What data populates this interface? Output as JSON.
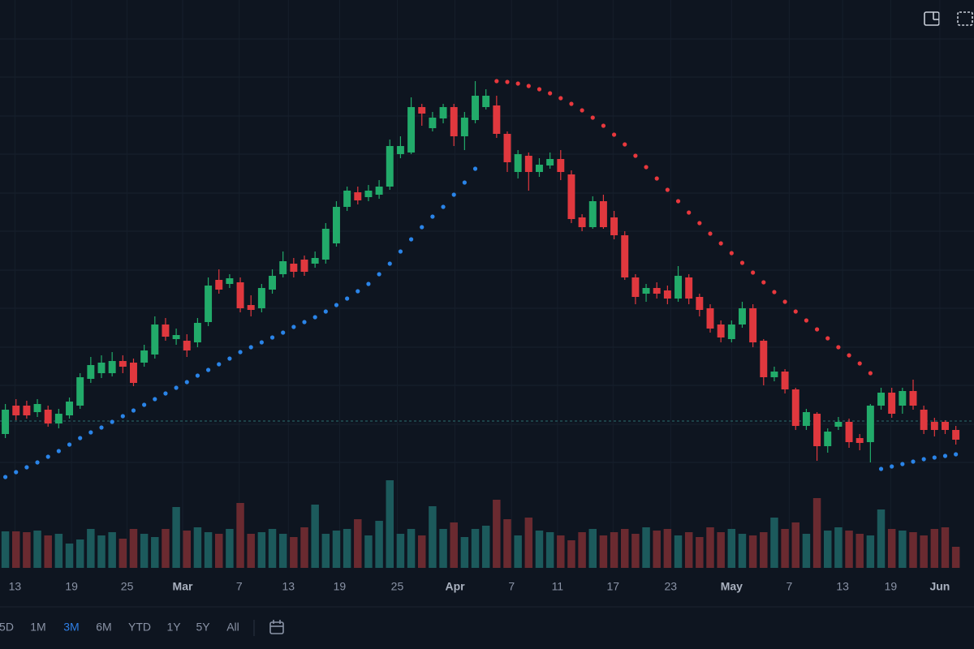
{
  "chart_data": {
    "type": "candlestick",
    "xlim": [
      -0.5,
      90.7
    ],
    "xticks": [
      {
        "value": 0.9,
        "label": "13"
      },
      {
        "value": 6.2,
        "label": "19"
      },
      {
        "value": 11.4,
        "label": "25"
      },
      {
        "value": 16.6,
        "label": "Mar"
      },
      {
        "value": 21.9,
        "label": "7"
      },
      {
        "value": 26.5,
        "label": "13"
      },
      {
        "value": 31.3,
        "label": "19"
      },
      {
        "value": 36.7,
        "label": "25"
      },
      {
        "value": 42.1,
        "label": "Apr"
      },
      {
        "value": 47.4,
        "label": "7"
      },
      {
        "value": 51.7,
        "label": "11"
      },
      {
        "value": 56.9,
        "label": "17"
      },
      {
        "value": 62.3,
        "label": "23"
      },
      {
        "value": 68.0,
        "label": "May"
      },
      {
        "value": 73.4,
        "label": "7"
      },
      {
        "value": 78.4,
        "label": "13"
      },
      {
        "value": 82.9,
        "label": "19"
      },
      {
        "value": 87.5,
        "label": "Jun"
      }
    ],
    "ylim": [
      0,
      600
    ],
    "yticks": [
      30,
      77,
      125,
      172,
      220,
      267,
      315,
      362,
      410,
      457,
      505,
      552
    ],
    "grid": true,
    "up_color": "#22ab6a",
    "down_color": "#e0383e",
    "open": [
      65,
      100,
      100,
      92,
      95,
      78,
      88,
      100,
      133,
      140,
      140,
      155,
      153,
      153,
      163,
      200,
      182,
      180,
      178,
      203,
      255,
      250,
      252,
      224,
      220,
      243,
      262,
      275,
      280,
      275,
      280,
      300,
      345,
      363,
      357,
      360,
      370,
      410,
      412,
      468,
      442,
      454,
      468,
      432,
      452,
      468,
      470,
      435,
      388,
      408,
      388,
      396,
      404,
      385,
      332,
      320,
      352,
      332,
      310,
      258,
      238,
      245,
      242,
      232,
      258,
      234,
      220,
      200,
      182,
      200,
      220,
      180,
      135,
      142,
      120,
      75,
      90,
      50,
      74,
      80,
      60,
      55,
      100,
      116,
      100,
      118,
      95,
      80,
      80,
      70
    ],
    "high": [
      102,
      108,
      106,
      108,
      100,
      96,
      110,
      140,
      160,
      162,
      166,
      162,
      158,
      175,
      210,
      208,
      195,
      188,
      208,
      258,
      268,
      262,
      258,
      236,
      250,
      268,
      290,
      282,
      285,
      290,
      325,
      352,
      370,
      370,
      372,
      378,
      428,
      432,
      480,
      472,
      462,
      472,
      472,
      462,
      500,
      490,
      482,
      438,
      415,
      412,
      405,
      412,
      415,
      390,
      336,
      358,
      360,
      340,
      315,
      262,
      250,
      252,
      248,
      272,
      262,
      238,
      225,
      205,
      205,
      228,
      225,
      182,
      148,
      145,
      122,
      96,
      92,
      72,
      86,
      84,
      65,
      102,
      122,
      122,
      122,
      132,
      100,
      85,
      82,
      75
    ],
    "low": [
      60,
      82,
      84,
      86,
      74,
      72,
      84,
      96,
      128,
      134,
      136,
      140,
      124,
      148,
      158,
      180,
      175,
      160,
      172,
      198,
      238,
      245,
      215,
      210,
      215,
      238,
      258,
      258,
      260,
      270,
      275,
      296,
      340,
      348,
      352,
      355,
      366,
      405,
      410,
      445,
      438,
      448,
      420,
      415,
      448,
      465,
      430,
      388,
      380,
      365,
      382,
      392,
      378,
      325,
      315,
      318,
      318,
      305,
      255,
      225,
      228,
      232,
      225,
      228,
      225,
      210,
      190,
      178,
      178,
      196,
      172,
      125,
      130,
      115,
      70,
      70,
      32,
      42,
      70,
      48,
      45,
      30,
      95,
      85,
      90,
      95,
      65,
      62,
      65,
      52
    ],
    "close": [
      95,
      88,
      88,
      102,
      78,
      90,
      105,
      135,
      150,
      153,
      155,
      148,
      128,
      168,
      200,
      185,
      187,
      168,
      202,
      248,
      243,
      257,
      220,
      218,
      245,
      260,
      278,
      265,
      265,
      282,
      318,
      345,
      365,
      353,
      365,
      370,
      420,
      420,
      468,
      460,
      455,
      468,
      432,
      455,
      482,
      482,
      435,
      400,
      410,
      388,
      397,
      404,
      388,
      330,
      320,
      352,
      320,
      310,
      258,
      234,
      245,
      238,
      232,
      260,
      232,
      218,
      195,
      184,
      200,
      220,
      178,
      135,
      142,
      120,
      75,
      92,
      50,
      68,
      80,
      55,
      54,
      100,
      116,
      90,
      118,
      100,
      70,
      70,
      70,
      58
    ],
    "sar_below": {
      "color": "#2a84e8",
      "values": [
        12,
        18,
        24,
        30,
        37,
        44,
        52,
        60,
        67,
        73,
        80,
        87,
        94,
        101,
        108,
        115,
        122,
        129,
        137,
        144,
        151,
        158,
        166,
        172,
        178,
        184,
        190,
        197,
        203,
        209,
        216,
        224,
        232,
        241,
        250,
        262,
        275,
        290,
        305,
        320,
        333,
        345,
        360,
        375,
        392,
        null,
        null,
        null,
        null,
        null,
        null,
        null,
        null,
        null,
        null,
        null,
        null,
        null,
        null,
        null,
        null,
        null,
        null,
        null,
        null,
        null,
        null,
        null,
        null,
        null,
        null,
        null,
        null,
        null,
        null,
        null,
        null,
        null,
        null,
        null,
        null,
        null,
        22,
        25,
        28,
        31,
        34,
        36,
        38,
        40
      ]
    },
    "sar_above": {
      "color": "#e8383d",
      "values": [
        null,
        null,
        null,
        null,
        null,
        null,
        null,
        null,
        null,
        null,
        null,
        null,
        null,
        null,
        null,
        null,
        null,
        null,
        null,
        null,
        null,
        null,
        null,
        null,
        null,
        null,
        null,
        null,
        null,
        null,
        null,
        null,
        null,
        null,
        null,
        null,
        null,
        null,
        null,
        null,
        null,
        null,
        null,
        null,
        null,
        null,
        500,
        499,
        497,
        494,
        490,
        485,
        479,
        472,
        464,
        455,
        445,
        434,
        422,
        408,
        394,
        380,
        366,
        352,
        338,
        325,
        312,
        300,
        288,
        276,
        264,
        252,
        240,
        228,
        216,
        205,
        194,
        183,
        172,
        162,
        152,
        140,
        null,
        null,
        null,
        null,
        null,
        null,
        null,
        null
      ]
    },
    "reference_line": 81,
    "volume": [
      45,
      45,
      44,
      46,
      40,
      42,
      30,
      35,
      48,
      40,
      44,
      36,
      48,
      42,
      38,
      48,
      75,
      46,
      50,
      44,
      42,
      48,
      80,
      42,
      44,
      48,
      42,
      38,
      50,
      78,
      42,
      46,
      48,
      60,
      40,
      58,
      108,
      42,
      48,
      40,
      76,
      48,
      56,
      38,
      48,
      52,
      84,
      60,
      40,
      62,
      46,
      44,
      40,
      34,
      44,
      48,
      40,
      44,
      48,
      42,
      50,
      46,
      48,
      40,
      44,
      38,
      50,
      44,
      48,
      42,
      40,
      44,
      62,
      48,
      56,
      42,
      86,
      46,
      50,
      46,
      42,
      40,
      72,
      48,
      46,
      44,
      40,
      48,
      50,
      26
    ],
    "volume_lim": [
      0,
      120
    ],
    "volume_up_color": "#1c5a5c",
    "volume_down_color": "#6a2a30"
  },
  "toolbar": {
    "buttons": [
      "5D",
      "1M",
      "3M",
      "6M",
      "YTD",
      "1Y",
      "5Y",
      "All"
    ],
    "active": 2
  }
}
